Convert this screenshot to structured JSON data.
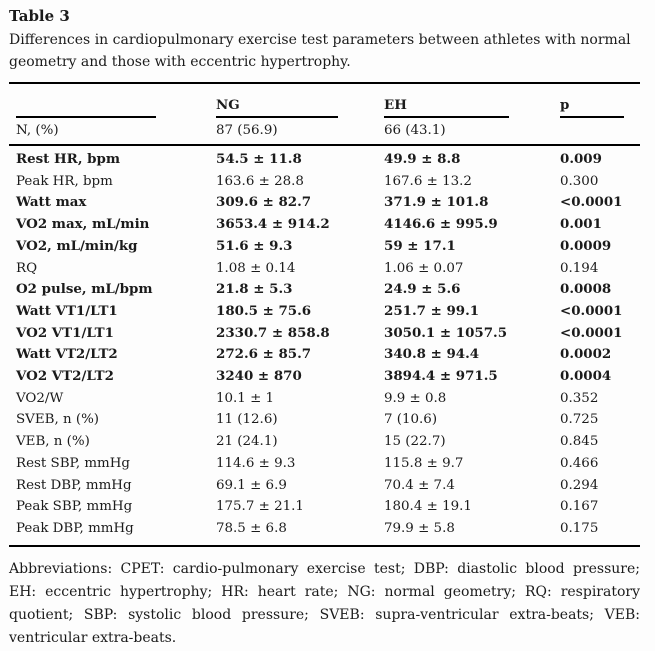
{
  "title": "Table 3",
  "caption": "Differences in cardiopulmonary exercise test parameters between athletes with normal geometry and those with eccentric hypertrophy.",
  "table": {
    "headers": [
      "",
      "NG",
      "EH",
      "p"
    ],
    "count_row": {
      "label": "N, (%)",
      "ng": "87 (56.9)",
      "eh": "66 (43.1)",
      "p": ""
    },
    "rows": [
      {
        "label": "Rest HR, bpm",
        "ng": "54.5 ± 11.8",
        "eh": "49.9 ± 8.8",
        "p": "0.009",
        "bold": true
      },
      {
        "label": "Peak HR, bpm",
        "ng": "163.6 ± 28.8",
        "eh": "167.6 ± 13.2",
        "p": "0.300",
        "bold": false
      },
      {
        "label": "Watt max",
        "ng": "309.6 ± 82.7",
        "eh": "371.9 ± 101.8",
        "p": "<0.0001",
        "bold": true
      },
      {
        "label": "VO2 max, mL/min",
        "ng": "3653.4 ± 914.2",
        "eh": "4146.6 ± 995.9",
        "p": "0.001",
        "bold": true
      },
      {
        "label": "VO2, mL/min/kg",
        "ng": "51.6 ± 9.3",
        "eh": "59 ± 17.1",
        "p": "0.0009",
        "bold": true
      },
      {
        "label": "RQ",
        "ng": "1.08 ± 0.14",
        "eh": "1.06 ± 0.07",
        "p": "0.194",
        "bold": false
      },
      {
        "label": "O2 pulse, mL/bpm",
        "ng": "21.8 ± 5.3",
        "eh": "24.9 ± 5.6",
        "p": "0.0008",
        "bold": true
      },
      {
        "label": "Watt VT1/LT1",
        "ng": "180.5 ± 75.6",
        "eh": "251.7 ± 99.1",
        "p": "<0.0001",
        "bold": true
      },
      {
        "label": "VO2 VT1/LT1",
        "ng": "2330.7 ± 858.8",
        "eh": "3050.1 ± 1057.5",
        "p": "<0.0001",
        "bold": true
      },
      {
        "label": "Watt VT2/LT2",
        "ng": "272.6 ± 85.7",
        "eh": "340.8 ± 94.4",
        "p": "0.0002",
        "bold": true
      },
      {
        "label": "VO2 VT2/LT2",
        "ng": "3240 ± 870",
        "eh": "3894.4 ± 971.5",
        "p": "0.0004",
        "bold": true
      },
      {
        "label": "VO2/W",
        "ng": "10.1 ± 1",
        "eh": "9.9 ± 0.8",
        "p": "0.352",
        "bold": false
      },
      {
        "label": "SVEB, n (%)",
        "ng": "11 (12.6)",
        "eh": "7 (10.6)",
        "p": "0.725",
        "bold": false
      },
      {
        "label": "VEB, n (%)",
        "ng": "21 (24.1)",
        "eh": "15 (22.7)",
        "p": "0.845",
        "bold": false
      },
      {
        "label": "Rest SBP, mmHg",
        "ng": "114.6 ± 9.3",
        "eh": "115.8 ± 9.7",
        "p": "0.466",
        "bold": false
      },
      {
        "label": "Rest DBP, mmHg",
        "ng": "69.1 ± 6.9",
        "eh": "70.4 ± 7.4",
        "p": "0.294",
        "bold": false
      },
      {
        "label": "Peak SBP, mmHg",
        "ng": "175.7 ± 21.1",
        "eh": "180.4 ± 19.1",
        "p": "0.167",
        "bold": false
      },
      {
        "label": "Peak DBP, mmHg",
        "ng": "78.5 ± 6.8",
        "eh": "79.9 ± 5.8",
        "p": "0.175",
        "bold": false
      }
    ]
  },
  "footnote": "Abbreviations: CPET: cardio-pulmonary exercise test; DBP: diastolic blood pressure; EH: eccentric hypertrophy; HR: heart rate; NG: normal geometry; RQ: respiratory quotient; SBP: systolic blood pressure; SVEB: supra-ventricular extra-beats; VEB: ventricular extra-beats.",
  "colors": {
    "text": "#1b1b1b",
    "rule": "#000000",
    "background": "#fdfdfd"
  }
}
